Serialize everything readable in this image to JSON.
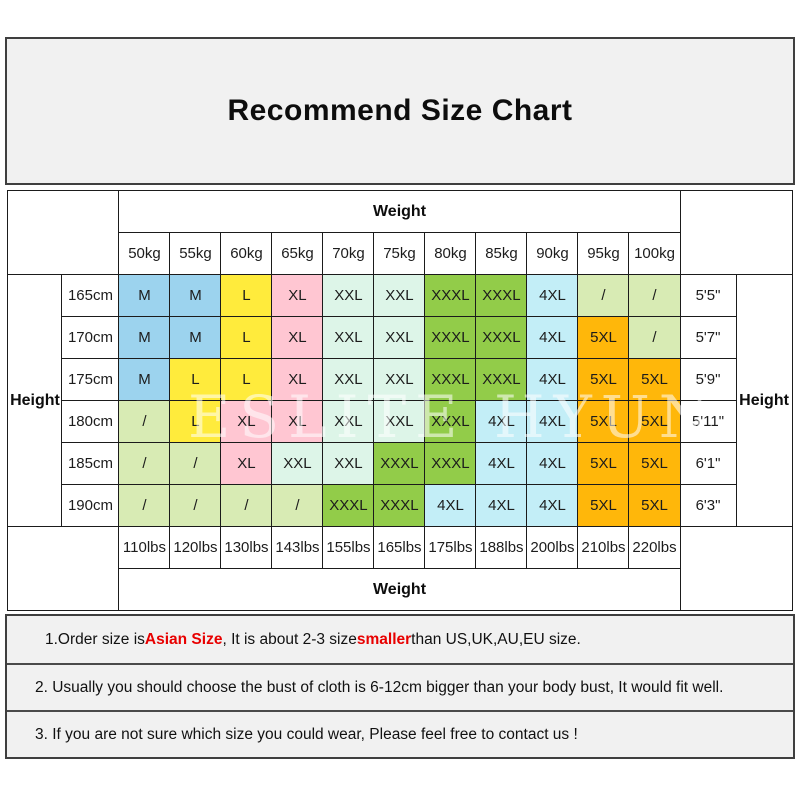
{
  "title": "Recommend Size Chart",
  "watermark": "ESLITE HYUN",
  "accent_red": "#e80000",
  "table": {
    "weight_label_top": "Weight",
    "weight_label_bottom": "Weight",
    "height_label_left": "Height",
    "height_label_right": "Height",
    "kg_columns": [
      "50kg",
      "55kg",
      "60kg",
      "65kg",
      "70kg",
      "75kg",
      "80kg",
      "85kg",
      "90kg",
      "95kg",
      "100kg"
    ],
    "lbs_columns": [
      "110lbs",
      "120lbs",
      "130lbs",
      "143lbs",
      "155lbs",
      "165lbs",
      "175lbs",
      "188lbs",
      "200lbs",
      "210lbs",
      "220lbs"
    ],
    "rows": [
      {
        "cm": "165cm",
        "ft": "5'5\"",
        "sizes": [
          "M",
          "M",
          "L",
          "XL",
          "XXL",
          "XXL",
          "XXXL",
          "XXXL",
          "4XL",
          "/",
          "/"
        ]
      },
      {
        "cm": "170cm",
        "ft": "5'7\"",
        "sizes": [
          "M",
          "M",
          "L",
          "XL",
          "XXL",
          "XXL",
          "XXXL",
          "XXXL",
          "4XL",
          "5XL",
          "/"
        ]
      },
      {
        "cm": "175cm",
        "ft": "5'9\"",
        "sizes": [
          "M",
          "L",
          "L",
          "XL",
          "XXL",
          "XXL",
          "XXXL",
          "XXXL",
          "4XL",
          "5XL",
          "5XL"
        ]
      },
      {
        "cm": "180cm",
        "ft": "5'11\"",
        "sizes": [
          "/",
          "L",
          "XL",
          "XL",
          "XXL",
          "XXL",
          "XXXL",
          "4XL",
          "4XL",
          "5XL",
          "5XL"
        ]
      },
      {
        "cm": "185cm",
        "ft": "6'1\"",
        "sizes": [
          "/",
          "/",
          "XL",
          "XXL",
          "XXL",
          "XXXL",
          "XXXL",
          "4XL",
          "4XL",
          "5XL",
          "5XL"
        ]
      },
      {
        "cm": "190cm",
        "ft": "6'3\"",
        "sizes": [
          "/",
          "/",
          "/",
          "/",
          "XXXL",
          "XXXL",
          "4XL",
          "4XL",
          "4XL",
          "5XL",
          "5XL"
        ]
      }
    ]
  },
  "size_colors": {
    "M": "#9cd3ee",
    "L": "#ffeb3c",
    "XL": "#ffc6d2",
    "XXL": "#ddf5e8",
    "XXXL": "#92cc49",
    "4XL": "#c3eef7",
    "5XL": "#ffb70a",
    "/": "#d8ebb4"
  },
  "notes": {
    "note1": {
      "p1": "1.Order size is ",
      "red1": "Asian Size",
      "p2": ", It is about 2-3 size ",
      "red2": "smaller",
      "p3": " than US,UK,AU,EU size."
    },
    "note2": "2. Usually you should choose the bust of cloth is 6-12cm bigger than your body bust, It would fit well.",
    "note3": "3. If you are not sure which size you could wear, Please feel free to contact us !"
  }
}
